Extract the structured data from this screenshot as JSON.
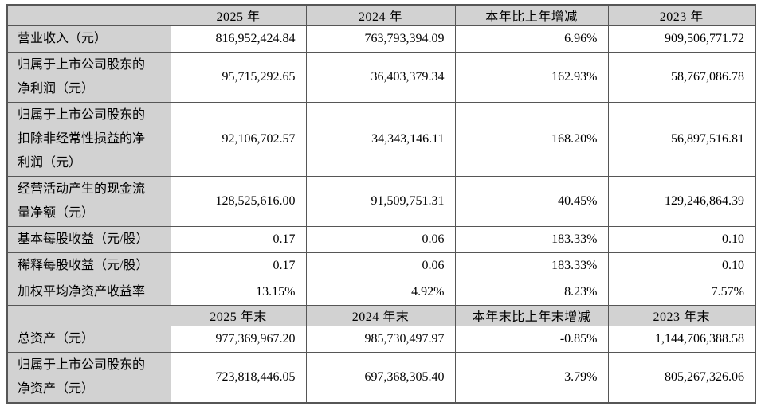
{
  "colors": {
    "header_bg": "#d2d2d2",
    "label_column_bg": "#d2d2d2",
    "border": "#565656",
    "text": "#000000",
    "data_cell_bg": "#ffffff"
  },
  "annual_section": {
    "headers": {
      "label": "",
      "col_2025": "2025 年",
      "col_2024": "2024 年",
      "col_change": "本年比上年增减",
      "col_2023": "2023 年"
    },
    "rows": [
      {
        "label": "营业收入（元）",
        "y2025": "816,952,424.84",
        "y2024": "763,793,394.09",
        "change": "6.96%",
        "y2023": "909,506,771.72"
      },
      {
        "label": "归属于上市公司股东的净利润（元）",
        "y2025": "95,715,292.65",
        "y2024": "36,403,379.34",
        "change": "162.93%",
        "y2023": "58,767,086.78"
      },
      {
        "label": "归属于上市公司股东的扣除非经常性损益的净利润（元）",
        "y2025": "92,106,702.57",
        "y2024": "34,343,146.11",
        "change": "168.20%",
        "y2023": "56,897,516.81"
      },
      {
        "label": "经营活动产生的现金流量净额（元）",
        "y2025": "128,525,616.00",
        "y2024": "91,509,751.31",
        "change": "40.45%",
        "y2023": "129,246,864.39"
      },
      {
        "label": "基本每股收益（元/股）",
        "y2025": "0.17",
        "y2024": "0.06",
        "change": "183.33%",
        "y2023": "0.10"
      },
      {
        "label": "稀释每股收益（元/股）",
        "y2025": "0.17",
        "y2024": "0.06",
        "change": "183.33%",
        "y2023": "0.10"
      },
      {
        "label": "加权平均净资产收益率",
        "y2025": "13.15%",
        "y2024": "4.92%",
        "change": "8.23%",
        "y2023": "7.57%"
      }
    ]
  },
  "period_end_section": {
    "headers": {
      "label": "",
      "col_2025": "2025 年末",
      "col_2024": "2024 年末",
      "col_change": "本年末比上年末增减",
      "col_2023": "2023 年末"
    },
    "rows": [
      {
        "label": "总资产（元）",
        "y2025": "977,369,967.20",
        "y2024": "985,730,497.97",
        "change": "-0.85%",
        "y2023": "1,144,706,388.58"
      },
      {
        "label": "归属于上市公司股东的净资产（元）",
        "y2025": "723,818,446.05",
        "y2024": "697,368,305.40",
        "change": "3.79%",
        "y2023": "805,267,326.06"
      }
    ]
  }
}
